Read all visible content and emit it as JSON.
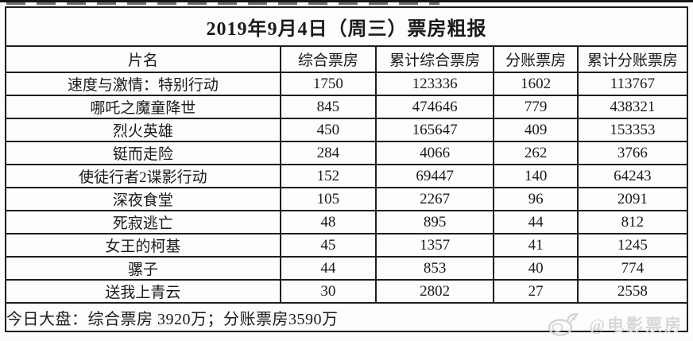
{
  "colors": {
    "background": "#fcfcfc",
    "border": "#1e1e1e",
    "text": "#1a1a1a",
    "watermark": "#d7d7d7"
  },
  "chart_data": {
    "type": "table",
    "title": "2019年9月4日（周三）票房粗报",
    "columns": [
      "片名",
      "综合票房",
      "累计综合票房",
      "分账票房",
      "累计分账票房"
    ],
    "rows": [
      [
        "速度与激情：特别行动",
        1750,
        123336,
        1602,
        113767
      ],
      [
        "哪吒之魔童降世",
        845,
        474646,
        779,
        438321
      ],
      [
        "烈火英雄",
        450,
        165647,
        409,
        153353
      ],
      [
        "铤而走险",
        284,
        4066,
        262,
        3766
      ],
      [
        "使徒行者2谍影行动",
        152,
        69447,
        140,
        64243
      ],
      [
        "深夜食堂",
        105,
        2267,
        96,
        2091
      ],
      [
        "死寂逃亡",
        48,
        895,
        44,
        812
      ],
      [
        "女王的柯基",
        45,
        1357,
        41,
        1245
      ],
      [
        "骡子",
        44,
        853,
        40,
        774
      ],
      [
        "送我上青云",
        30,
        2802,
        27,
        2558
      ]
    ],
    "footer": "今日大盘：综合票房 3920万；分账票房3590万",
    "layout": {
      "grid": true,
      "column_widths_percent": [
        40.3,
        14.0,
        17.3,
        12.3,
        16.1
      ]
    }
  },
  "watermark": {
    "label": "@电影票房",
    "icon": "movie-camera-doodle-icon"
  }
}
